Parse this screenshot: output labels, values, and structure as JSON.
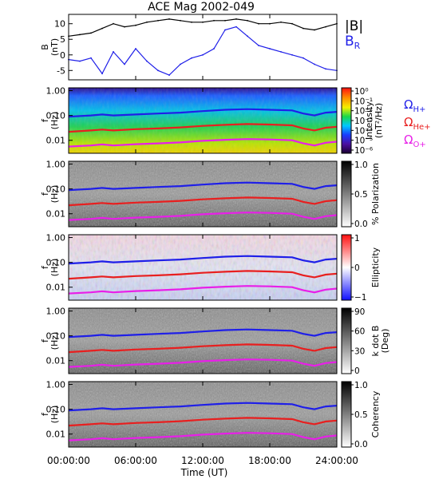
{
  "chart_data": {
    "type": "multi-panel",
    "title": "ACE Mag 2002-049",
    "x": {
      "label": "Time (UT)",
      "range_hours": [
        0,
        24
      ],
      "ticks": [
        0,
        6,
        12,
        18,
        24
      ],
      "tick_labels": [
        "00:00:00",
        "06:00:00",
        "12:00:00",
        "18:00:00",
        "24:00:00"
      ]
    },
    "panels": [
      {
        "type": "line",
        "ylabel": "B",
        "yunit": "(nT)",
        "ylim": [
          -8,
          13
        ],
        "yticks": [
          10,
          5,
          0,
          -5
        ],
        "series": [
          {
            "name": "|B|",
            "color": "#000000",
            "x": [
              0,
              1,
              2,
              3,
              4,
              5,
              6,
              7,
              8,
              9,
              10,
              11,
              12,
              13,
              14,
              15,
              16,
              17,
              18,
              19,
              20,
              21,
              22,
              23,
              24
            ],
            "values": [
              6,
              6.5,
              7,
              8.5,
              10,
              9,
              9.5,
              10.5,
              11,
              11.5,
              11,
              10.5,
              10.5,
              11,
              11,
              11.5,
              11,
              10,
              10,
              10.5,
              10,
              8.5,
              8,
              9,
              10
            ]
          },
          {
            "name": "B",
            "name_sub": "R",
            "color": "#1f1fe8",
            "x": [
              0,
              1,
              2,
              3,
              4,
              5,
              6,
              7,
              8,
              9,
              10,
              11,
              12,
              13,
              14,
              15,
              16,
              17,
              18,
              19,
              20,
              21,
              22,
              23,
              24
            ],
            "values": [
              -1.5,
              -2,
              -1,
              -6,
              1,
              -3,
              2,
              -2,
              -5,
              -6.5,
              -3,
              -1,
              0,
              2,
              8,
              9,
              6,
              3,
              2,
              1,
              0,
              -1,
              -3,
              -4.5,
              -5
            ]
          }
        ]
      },
      {
        "type": "heatmap",
        "ylabel": "f",
        "yunit": "(Hz)",
        "yscale": "log",
        "ylim": [
          0.003,
          1.3
        ],
        "yticks": [
          "1.00",
          "0.10",
          "0.01"
        ],
        "colorbar": {
          "label": "Intensity",
          "unit": "(nT²/Hz)",
          "scale": "log",
          "ticks": [
            "10⁰",
            "10⁻¹",
            "10⁻²",
            "10⁻³",
            "10⁻⁴",
            "10⁻⁵",
            "10⁻⁶"
          ],
          "colormap": "rainbow"
        },
        "legend": [
          {
            "name": "Ω",
            "sub": "H+",
            "color": "#1f1fe8"
          },
          {
            "name": "Ω",
            "sub": "He+",
            "color": "#e81f1f"
          },
          {
            "name": "Ω",
            "sub": "O+",
            "color": "#e81fe8"
          }
        ]
      },
      {
        "type": "heatmap",
        "ylabel": "f",
        "yunit": "(Hz)",
        "yscale": "log",
        "ylim": [
          0.003,
          1.3
        ],
        "yticks": [
          "1.00",
          "0.10",
          "0.01"
        ],
        "colorbar": {
          "label": "% Polarization",
          "unit": "",
          "scale": "linear",
          "ticks": [
            "1.0",
            "0.5",
            "0.0"
          ],
          "colormap": "gray"
        }
      },
      {
        "type": "heatmap",
        "ylabel": "f",
        "yunit": "(Hz)",
        "yscale": "log",
        "ylim": [
          0.003,
          1.3
        ],
        "yticks": [
          "1.00",
          "0.10",
          "0.01"
        ],
        "colorbar": {
          "label": "Ellipticity",
          "unit": "",
          "scale": "linear",
          "ticks": [
            "1",
            "0",
            "−1"
          ],
          "colormap": "bwr"
        }
      },
      {
        "type": "heatmap",
        "ylabel": "f",
        "yunit": "(Hz)",
        "yscale": "log",
        "ylim": [
          0.003,
          1.3
        ],
        "yticks": [
          "1.00",
          "0.10",
          "0.01"
        ],
        "colorbar": {
          "label": "k dot B",
          "unit": "(Deg)",
          "scale": "linear",
          "ticks": [
            "90",
            "60",
            "30",
            "0"
          ],
          "colormap": "gray"
        }
      },
      {
        "type": "heatmap",
        "ylabel": "f",
        "yunit": "(Hz)",
        "yscale": "log",
        "ylim": [
          0.003,
          1.3
        ],
        "yticks": [
          "1.00",
          "0.10",
          "0.01"
        ],
        "colorbar": {
          "label": "Coherency",
          "unit": "",
          "scale": "linear",
          "ticks": [
            "1.0",
            "0.5",
            "0.0"
          ],
          "colormap": "gray"
        }
      }
    ],
    "gyrofrequency_lines": [
      {
        "ion": "H+",
        "color": "#1f1fe8",
        "x": [
          0,
          2,
          3,
          4,
          6,
          8,
          10,
          12,
          14,
          16,
          18,
          20,
          21,
          22,
          23,
          24
        ],
        "values": [
          0.09,
          0.1,
          0.11,
          0.1,
          0.11,
          0.12,
          0.13,
          0.15,
          0.17,
          0.18,
          0.17,
          0.16,
          0.12,
          0.1,
          0.13,
          0.14
        ]
      },
      {
        "ion": "He+",
        "color": "#e81f1f",
        "x": [
          0,
          2,
          3,
          4,
          6,
          8,
          10,
          12,
          14,
          16,
          18,
          20,
          21,
          22,
          23,
          24
        ],
        "values": [
          0.022,
          0.025,
          0.027,
          0.025,
          0.028,
          0.03,
          0.033,
          0.038,
          0.042,
          0.045,
          0.043,
          0.04,
          0.03,
          0.025,
          0.032,
          0.035
        ]
      },
      {
        "ion": "O+",
        "color": "#e81fe8",
        "x": [
          0,
          2,
          3,
          4,
          6,
          8,
          10,
          12,
          14,
          16,
          18,
          20,
          21,
          22,
          23,
          24
        ],
        "values": [
          0.0056,
          0.0062,
          0.0068,
          0.0062,
          0.007,
          0.0075,
          0.0082,
          0.0095,
          0.0105,
          0.0112,
          0.0108,
          0.01,
          0.0075,
          0.0062,
          0.008,
          0.0088
        ]
      }
    ]
  }
}
